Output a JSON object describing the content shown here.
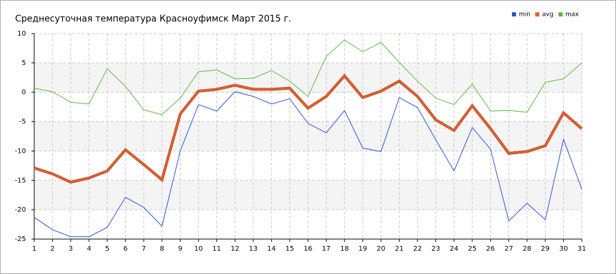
{
  "chart_data": {
    "type": "line",
    "title": "Среднесуточная температура Красноуфимск  Март 2015 г.",
    "categories": [
      "1",
      "2",
      "3",
      "4",
      "5",
      "6",
      "7",
      "8",
      "9",
      "10",
      "11",
      "12",
      "13",
      "14",
      "15",
      "16",
      "17",
      "18",
      "19",
      "20",
      "21",
      "22",
      "23",
      "24",
      "25",
      "26",
      "27",
      "28",
      "29",
      "30",
      "31"
    ],
    "series": [
      {
        "name": "min",
        "color": "#2a52d8",
        "values": [
          -21.3,
          -23.4,
          -24.6,
          -24.6,
          -23.0,
          -17.9,
          -19.6,
          -22.8,
          -10.0,
          -2.1,
          -3.2,
          0.1,
          -0.7,
          -2.0,
          -1.1,
          -5.3,
          -6.9,
          -3.1,
          -9.5,
          -10.1,
          -0.9,
          -2.6,
          -8.1,
          -13.4,
          -6.0,
          -9.7,
          -21.9,
          -18.9,
          -21.7,
          -8.0,
          -16.5
        ]
      },
      {
        "name": "avg",
        "color": "#e8602c",
        "values": [
          -12.9,
          -13.9,
          -15.3,
          -14.6,
          -13.4,
          -9.8,
          -12.3,
          -14.9,
          -3.7,
          0.2,
          0.5,
          1.2,
          0.5,
          0.5,
          0.7,
          -2.7,
          -0.7,
          2.8,
          -0.9,
          0.2,
          1.9,
          -0.7,
          -4.7,
          -6.5,
          -2.3,
          -6.2,
          -10.4,
          -10.1,
          -9.1,
          -3.5,
          -6.2
        ]
      },
      {
        "name": "max",
        "color": "#5cb83c",
        "values": [
          0.7,
          0.1,
          -1.7,
          -2.0,
          4.0,
          1.0,
          -3.0,
          -3.8,
          -1.0,
          3.5,
          3.8,
          2.3,
          2.4,
          3.7,
          1.9,
          -0.7,
          6.1,
          8.9,
          6.9,
          8.5,
          5.1,
          1.9,
          -1.0,
          -2.1,
          1.4,
          -3.2,
          -3.1,
          -3.4,
          1.7,
          2.3,
          5.0
        ]
      }
    ],
    "ylim": [
      -25,
      10
    ],
    "yticks": [
      -25,
      -20,
      -15,
      -10,
      -5,
      0,
      5,
      10
    ],
    "grid": true,
    "legend": "top-right"
  }
}
